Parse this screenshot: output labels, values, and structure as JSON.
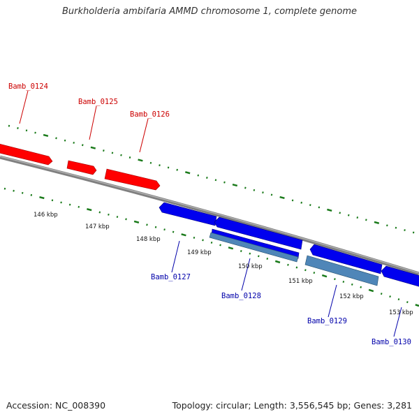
{
  "title": "Burkholderia ambifaria AMMD chromosome 1, complete genome",
  "footer": {
    "accession": "Accession: NC_008390",
    "topology": "Topology: circular; Length: 3,556,545 bp; Genes: 3,281"
  },
  "colors": {
    "forward_gene": "#ff0000",
    "reverse_gene": "#0000ee",
    "reverse_gene_light": "#4f86b8",
    "forward_label": "#cc0000",
    "reverse_label": "#0000aa",
    "backbone": "#808080",
    "ticks": "#1a7a1a"
  },
  "tick_labels": [
    "146 kbp",
    "147 kbp",
    "148 kbp",
    "149 kbp",
    "150 kbp",
    "151 kbp",
    "152 kbp",
    "153 kbp"
  ],
  "genes": [
    {
      "id": "Bamb_0124",
      "strand": "forward"
    },
    {
      "id": "Bamb_0125",
      "strand": "forward"
    },
    {
      "id": "Bamb_0126",
      "strand": "forward"
    },
    {
      "id": "Bamb_0127",
      "strand": "reverse"
    },
    {
      "id": "Bamb_0128",
      "strand": "reverse"
    },
    {
      "id": "Bamb_0129",
      "strand": "reverse"
    },
    {
      "id": "Bamb_0130",
      "strand": "reverse"
    }
  ]
}
